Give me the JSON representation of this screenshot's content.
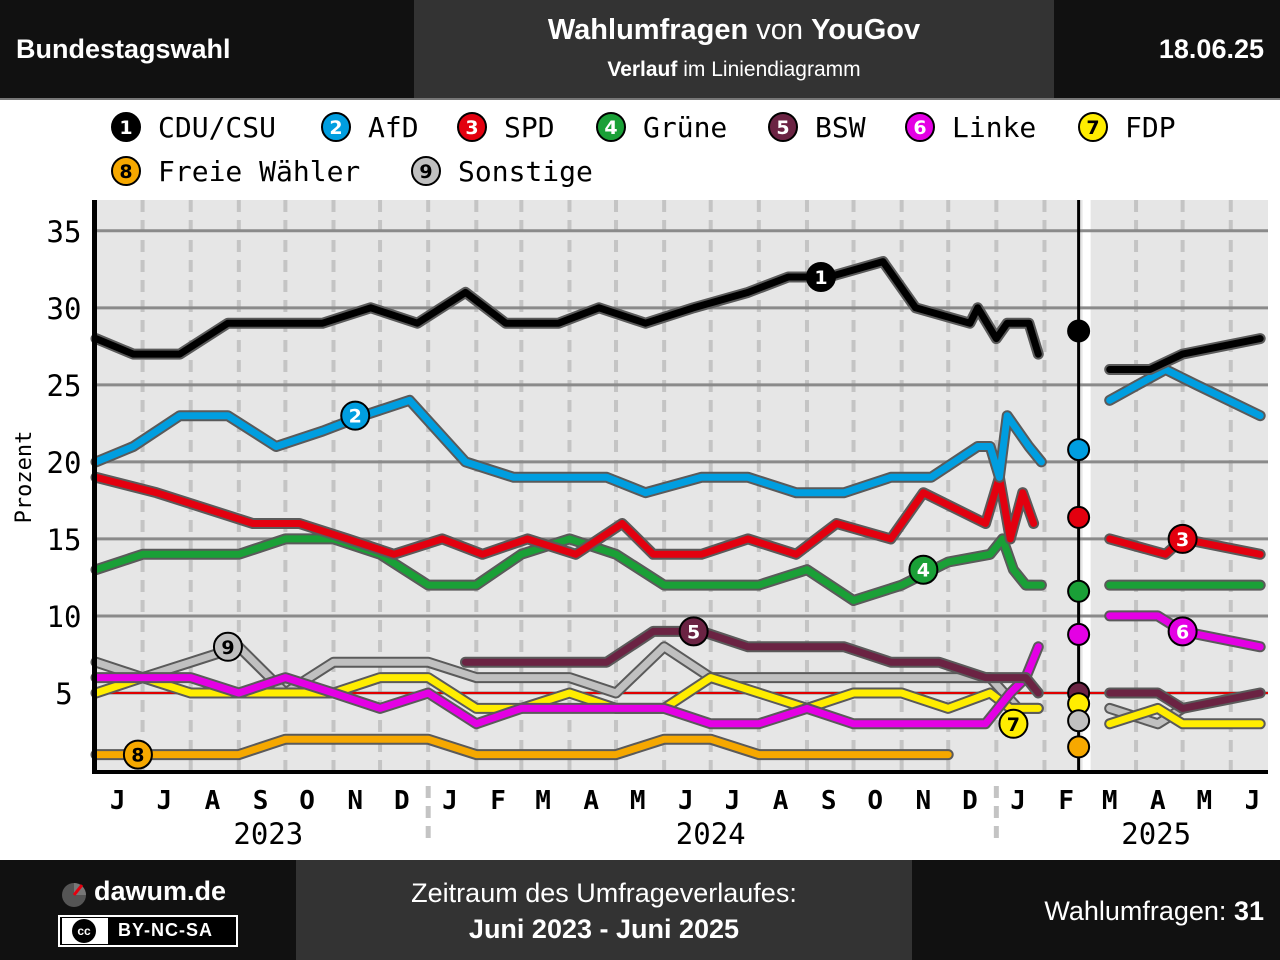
{
  "header": {
    "left": "Bundestagswahl",
    "title_strong_1": "Wahlumfragen",
    "title_mid": " von ",
    "title_strong_2": "YouGov",
    "subtitle_strong": "Verlauf",
    "subtitle_rest": " im Liniendiagramm",
    "date": "18.06.25"
  },
  "footer": {
    "site": "dawum.de",
    "license": "BY-NC-SA",
    "license_icon": "cc",
    "period_label": "Zeitraum des Umfrageverlaufes:",
    "period_value": "Juni 2023 - Juni 2025",
    "count_label": "Wahlumfragen: ",
    "count_value": "31"
  },
  "chart_data": {
    "type": "line",
    "ylabel": "Prozent",
    "ylim": [
      0,
      37
    ],
    "yticks": [
      5,
      10,
      15,
      20,
      25,
      30,
      35
    ],
    "threshold": 5,
    "threshold_color": "#e00000",
    "election_date": "2025-02-23",
    "x_start": "2023-06-01",
    "x_end": "2025-06-25",
    "month_labels": [
      {
        "d": "2023-06-15",
        "l": "J"
      },
      {
        "d": "2023-07-15",
        "l": "J"
      },
      {
        "d": "2023-08-15",
        "l": "A"
      },
      {
        "d": "2023-09-15",
        "l": "S"
      },
      {
        "d": "2023-10-15",
        "l": "O"
      },
      {
        "d": "2023-11-15",
        "l": "N"
      },
      {
        "d": "2023-12-15",
        "l": "D"
      },
      {
        "d": "2024-01-15",
        "l": "J"
      },
      {
        "d": "2024-02-15",
        "l": "F"
      },
      {
        "d": "2024-03-15",
        "l": "M"
      },
      {
        "d": "2024-04-15",
        "l": "A"
      },
      {
        "d": "2024-05-15",
        "l": "M"
      },
      {
        "d": "2024-06-15",
        "l": "J"
      },
      {
        "d": "2024-07-15",
        "l": "J"
      },
      {
        "d": "2024-08-15",
        "l": "A"
      },
      {
        "d": "2024-09-15",
        "l": "S"
      },
      {
        "d": "2024-10-15",
        "l": "O"
      },
      {
        "d": "2024-11-15",
        "l": "N"
      },
      {
        "d": "2024-12-15",
        "l": "D"
      },
      {
        "d": "2025-01-15",
        "l": "J"
      },
      {
        "d": "2025-02-15",
        "l": "F"
      },
      {
        "d": "2025-03-15",
        "l": "M"
      },
      {
        "d": "2025-04-15",
        "l": "A"
      },
      {
        "d": "2025-05-15",
        "l": "M"
      },
      {
        "d": "2025-06-15",
        "l": "J"
      }
    ],
    "years": [
      {
        "d": "2023-09-20",
        "l": "2023"
      },
      {
        "d": "2024-07-01",
        "l": "2024"
      },
      {
        "d": "2025-04-14",
        "l": "2025"
      }
    ],
    "series": [
      {
        "name": "CDU/CSU",
        "num": "1",
        "color": "#000000",
        "numColor": "#ffffff",
        "pre": [
          [
            "2023-06-01",
            28
          ],
          [
            "2023-06-25",
            27
          ],
          [
            "2023-07-25",
            27
          ],
          [
            "2023-08-25",
            29
          ],
          [
            "2023-09-25",
            29
          ],
          [
            "2023-10-25",
            29
          ],
          [
            "2023-11-25",
            30
          ],
          [
            "2023-12-25",
            29
          ],
          [
            "2024-01-25",
            31
          ],
          [
            "2024-02-20",
            29
          ],
          [
            "2024-03-25",
            29
          ],
          [
            "2024-04-20",
            30
          ],
          [
            "2024-05-20",
            29
          ],
          [
            "2024-06-20",
            30
          ],
          [
            "2024-07-25",
            31
          ],
          [
            "2024-08-20",
            32
          ],
          [
            "2024-09-15",
            32
          ],
          [
            "2024-10-20",
            33
          ],
          [
            "2024-11-10",
            30
          ],
          [
            "2024-12-15",
            29
          ],
          [
            "2024-12-20",
            30
          ],
          [
            "2025-01-01",
            28
          ],
          [
            "2025-01-08",
            29
          ],
          [
            "2025-01-22",
            29
          ],
          [
            "2025-01-28",
            27
          ]
        ],
        "result": 28.5,
        "post": [
          [
            "2025-03-15",
            26
          ],
          [
            "2025-04-10",
            26
          ],
          [
            "2025-05-01",
            27
          ],
          [
            "2025-06-20",
            28
          ]
        ],
        "marker": [
          "2024-09-10",
          32
        ]
      },
      {
        "name": "AfD",
        "num": "2",
        "color": "#009ee0",
        "numColor": "#ffffff",
        "pre": [
          [
            "2023-06-01",
            20
          ],
          [
            "2023-06-25",
            21
          ],
          [
            "2023-07-25",
            23
          ],
          [
            "2023-08-25",
            23
          ],
          [
            "2023-09-25",
            21
          ],
          [
            "2023-10-25",
            22
          ],
          [
            "2023-11-20",
            23
          ],
          [
            "2023-12-20",
            24
          ],
          [
            "2024-01-25",
            20
          ],
          [
            "2024-02-25",
            19
          ],
          [
            "2024-03-25",
            19
          ],
          [
            "2024-04-25",
            19
          ],
          [
            "2024-05-20",
            18
          ],
          [
            "2024-06-25",
            19
          ],
          [
            "2024-07-25",
            19
          ],
          [
            "2024-08-25",
            18
          ],
          [
            "2024-09-25",
            18
          ],
          [
            "2024-10-25",
            19
          ],
          [
            "2024-11-20",
            19
          ],
          [
            "2024-12-20",
            21
          ],
          [
            "2024-12-28",
            21
          ],
          [
            "2025-01-03",
            19
          ],
          [
            "2025-01-08",
            23
          ],
          [
            "2025-01-22",
            21
          ],
          [
            "2025-01-30",
            20
          ]
        ],
        "result": 20.8,
        "post": [
          [
            "2025-03-15",
            24
          ],
          [
            "2025-04-20",
            26
          ],
          [
            "2025-05-10",
            25
          ],
          [
            "2025-06-20",
            23
          ]
        ],
        "marker": [
          "2023-11-15",
          23
        ]
      },
      {
        "name": "SPD",
        "num": "3",
        "color": "#e3000f",
        "numColor": "#ffffff",
        "pre": [
          [
            "2023-06-01",
            19
          ],
          [
            "2023-07-10",
            18
          ],
          [
            "2023-08-10",
            17
          ],
          [
            "2023-09-10",
            16
          ],
          [
            "2023-10-10",
            16
          ],
          [
            "2023-11-10",
            15
          ],
          [
            "2023-12-10",
            14
          ],
          [
            "2024-01-10",
            15
          ],
          [
            "2024-02-05",
            14
          ],
          [
            "2024-03-05",
            15
          ],
          [
            "2024-04-05",
            14
          ],
          [
            "2024-05-05",
            16
          ],
          [
            "2024-05-25",
            14
          ],
          [
            "2024-06-25",
            14
          ],
          [
            "2024-07-25",
            15
          ],
          [
            "2024-08-25",
            14
          ],
          [
            "2024-09-20",
            16
          ],
          [
            "2024-10-25",
            15
          ],
          [
            "2024-11-15",
            18
          ],
          [
            "2024-12-25",
            16
          ],
          [
            "2025-01-03",
            19
          ],
          [
            "2025-01-10",
            15
          ],
          [
            "2025-01-18",
            18
          ],
          [
            "2025-01-25",
            16
          ]
        ],
        "result": 16.4,
        "post": [
          [
            "2025-03-15",
            15
          ],
          [
            "2025-04-20",
            14
          ],
          [
            "2025-05-01",
            15
          ],
          [
            "2025-06-20",
            14
          ]
        ],
        "marker": [
          "2025-05-01",
          15
        ]
      },
      {
        "name": "Grüne",
        "num": "4",
        "color": "#1aa037",
        "numColor": "#ffffff",
        "pre": [
          [
            "2023-06-01",
            13
          ],
          [
            "2023-07-01",
            14
          ],
          [
            "2023-08-01",
            14
          ],
          [
            "2023-09-01",
            14
          ],
          [
            "2023-10-01",
            15
          ],
          [
            "2023-11-01",
            15
          ],
          [
            "2023-12-01",
            14
          ],
          [
            "2024-01-01",
            12
          ],
          [
            "2024-02-01",
            12
          ],
          [
            "2024-03-01",
            14
          ],
          [
            "2024-04-01",
            15
          ],
          [
            "2024-05-01",
            14
          ],
          [
            "2024-06-01",
            12
          ],
          [
            "2024-07-01",
            12
          ],
          [
            "2024-08-01",
            12
          ],
          [
            "2024-09-01",
            13
          ],
          [
            "2024-10-01",
            11
          ],
          [
            "2024-11-01",
            12
          ],
          [
            "2024-12-01",
            13.5
          ],
          [
            "2024-12-28",
            14
          ],
          [
            "2025-01-05",
            15
          ],
          [
            "2025-01-12",
            13
          ],
          [
            "2025-01-20",
            12
          ],
          [
            "2025-01-30",
            12
          ]
        ],
        "result": 11.6,
        "post": [
          [
            "2025-03-15",
            12
          ],
          [
            "2025-04-15",
            12
          ],
          [
            "2025-06-20",
            12
          ]
        ],
        "marker": [
          "2024-11-15",
          13
        ]
      },
      {
        "name": "BSW",
        "num": "5",
        "color": "#6b2343",
        "numColor": "#ffffff",
        "pre": [
          [
            "2024-01-25",
            7
          ],
          [
            "2024-02-25",
            7
          ],
          [
            "2024-03-25",
            7
          ],
          [
            "2024-04-25",
            7
          ],
          [
            "2024-05-25",
            9
          ],
          [
            "2024-06-25",
            9
          ],
          [
            "2024-07-25",
            8
          ],
          [
            "2024-08-25",
            8
          ],
          [
            "2024-09-25",
            8
          ],
          [
            "2024-10-25",
            7
          ],
          [
            "2024-11-25",
            7
          ],
          [
            "2024-12-25",
            6
          ],
          [
            "2025-01-20",
            6
          ],
          [
            "2025-01-28",
            5
          ]
        ],
        "result": 5.0,
        "post": [
          [
            "2025-03-15",
            5
          ],
          [
            "2025-04-15",
            5
          ],
          [
            "2025-05-01",
            4
          ],
          [
            "2025-06-20",
            5
          ]
        ],
        "marker": [
          "2024-06-20",
          9
        ]
      },
      {
        "name": "Linke",
        "num": "6",
        "color": "#e400e4",
        "numColor": "#ffffff",
        "pre": [
          [
            "2023-06-01",
            6
          ],
          [
            "2023-07-01",
            6
          ],
          [
            "2023-08-01",
            6
          ],
          [
            "2023-09-01",
            5
          ],
          [
            "2023-10-01",
            6
          ],
          [
            "2023-11-01",
            5
          ],
          [
            "2023-12-01",
            4
          ],
          [
            "2024-01-01",
            5
          ],
          [
            "2024-02-01",
            3
          ],
          [
            "2024-03-01",
            4
          ],
          [
            "2024-04-01",
            4
          ],
          [
            "2024-05-01",
            4
          ],
          [
            "2024-06-01",
            4
          ],
          [
            "2024-07-01",
            3
          ],
          [
            "2024-08-01",
            3
          ],
          [
            "2024-09-01",
            4
          ],
          [
            "2024-10-01",
            3
          ],
          [
            "2024-11-01",
            3
          ],
          [
            "2024-12-01",
            3
          ],
          [
            "2024-12-25",
            3
          ],
          [
            "2025-01-10",
            5
          ],
          [
            "2025-01-20",
            6
          ],
          [
            "2025-01-28",
            8
          ]
        ],
        "result": 8.8,
        "post": [
          [
            "2025-03-15",
            10
          ],
          [
            "2025-04-15",
            10
          ],
          [
            "2025-05-01",
            9
          ],
          [
            "2025-06-20",
            8
          ]
        ],
        "marker": [
          "2025-05-01",
          9
        ]
      },
      {
        "name": "FDP",
        "num": "7",
        "color": "#ffed00",
        "numColor": "#000000",
        "pre": [
          [
            "2023-06-01",
            5
          ],
          [
            "2023-07-01",
            6
          ],
          [
            "2023-08-01",
            5
          ],
          [
            "2023-09-01",
            5
          ],
          [
            "2023-10-01",
            5
          ],
          [
            "2023-11-01",
            5
          ],
          [
            "2023-12-01",
            6
          ],
          [
            "2024-01-01",
            6
          ],
          [
            "2024-02-01",
            4
          ],
          [
            "2024-03-01",
            4
          ],
          [
            "2024-04-01",
            5
          ],
          [
            "2024-05-01",
            4
          ],
          [
            "2024-06-01",
            4
          ],
          [
            "2024-07-01",
            6
          ],
          [
            "2024-08-01",
            5
          ],
          [
            "2024-09-01",
            4
          ],
          [
            "2024-10-01",
            5
          ],
          [
            "2024-11-01",
            5
          ],
          [
            "2024-12-01",
            4
          ],
          [
            "2024-12-28",
            5
          ],
          [
            "2025-01-10",
            4
          ],
          [
            "2025-01-28",
            4
          ]
        ],
        "result": 4.3,
        "post": [
          [
            "2025-03-15",
            3
          ],
          [
            "2025-04-15",
            4
          ],
          [
            "2025-05-01",
            3
          ],
          [
            "2025-06-20",
            3
          ]
        ],
        "marker": [
          "2025-01-12",
          3
        ]
      },
      {
        "name": "Freie Wähler",
        "num": "8",
        "color": "#f6a800",
        "numColor": "#000000",
        "pre": [
          [
            "2023-06-01",
            1
          ],
          [
            "2023-07-01",
            1
          ],
          [
            "2023-08-01",
            1
          ],
          [
            "2023-09-01",
            1
          ],
          [
            "2023-10-01",
            2
          ],
          [
            "2023-11-01",
            2
          ],
          [
            "2023-12-01",
            2
          ],
          [
            "2024-01-01",
            2
          ],
          [
            "2024-02-01",
            1
          ],
          [
            "2024-03-01",
            1
          ],
          [
            "2024-04-01",
            1
          ],
          [
            "2024-05-01",
            1
          ],
          [
            "2024-06-01",
            2
          ],
          [
            "2024-07-01",
            2
          ],
          [
            "2024-08-01",
            1
          ],
          [
            "2024-09-01",
            1
          ],
          [
            "2024-10-01",
            1
          ],
          [
            "2024-11-01",
            1
          ],
          [
            "2024-12-01",
            1
          ]
        ],
        "result": 1.5,
        "post": [],
        "marker": [
          "2023-06-28",
          1
        ]
      },
      {
        "name": "Sonstige",
        "num": "9",
        "color": "#c0c0c0",
        "numColor": "#000000",
        "pre": [
          [
            "2023-06-01",
            7
          ],
          [
            "2023-07-01",
            6
          ],
          [
            "2023-08-01",
            7
          ],
          [
            "2023-09-01",
            8
          ],
          [
            "2023-10-01",
            5
          ],
          [
            "2023-11-01",
            7
          ],
          [
            "2023-12-01",
            7
          ],
          [
            "2024-01-01",
            7
          ],
          [
            "2024-02-01",
            6
          ],
          [
            "2024-03-01",
            6
          ],
          [
            "2024-04-01",
            6
          ],
          [
            "2024-05-01",
            5
          ],
          [
            "2024-06-01",
            8
          ],
          [
            "2024-07-01",
            6
          ],
          [
            "2024-08-01",
            6
          ],
          [
            "2024-09-01",
            6
          ],
          [
            "2024-10-01",
            6
          ],
          [
            "2024-11-01",
            6
          ],
          [
            "2024-12-01",
            6
          ],
          [
            "2024-12-28",
            6
          ],
          [
            "2025-01-15",
            4
          ],
          [
            "2025-01-28",
            4
          ]
        ],
        "result": 3.2,
        "post": [
          [
            "2025-03-15",
            4
          ],
          [
            "2025-04-15",
            3
          ],
          [
            "2025-05-01",
            4
          ]
        ],
        "marker": [
          "2023-08-25",
          8
        ]
      }
    ]
  }
}
